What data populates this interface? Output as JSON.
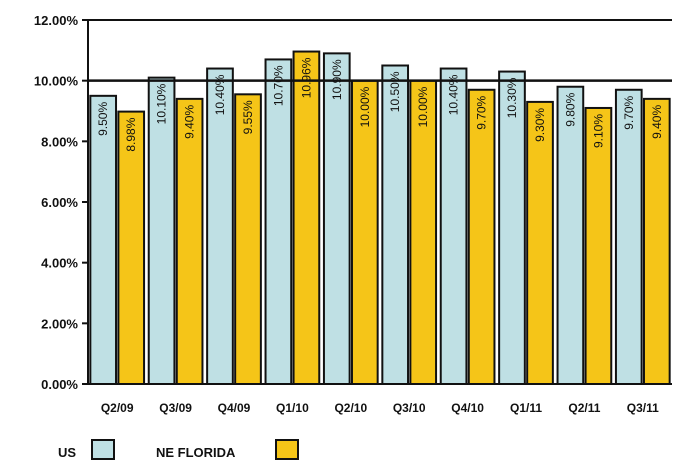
{
  "chart_data": {
    "type": "bar",
    "categories": [
      "Q2/09",
      "Q3/09",
      "Q4/09",
      "Q1/10",
      "Q2/10",
      "Q3/10",
      "Q4/10",
      "Q1/11",
      "Q2/11",
      "Q3/11"
    ],
    "series": [
      {
        "name": "US",
        "color": "#bfe0e4",
        "values": [
          9.5,
          10.1,
          10.4,
          10.7,
          10.9,
          10.5,
          10.4,
          10.3,
          9.8,
          9.7
        ],
        "labels": [
          "9.50%",
          "10.10%",
          "10.40%",
          "10.70%",
          "10.90%",
          "10.50%",
          "10.40%",
          "10.30%",
          "9.80%",
          "9.70%"
        ]
      },
      {
        "name": "NE FLORIDA",
        "color": "#f5c518",
        "values": [
          8.98,
          9.4,
          9.55,
          10.96,
          10.0,
          10.0,
          9.7,
          9.3,
          9.1,
          9.4
        ],
        "labels": [
          "8.98%",
          "9.40%",
          "9.55%",
          "10.96%",
          "10.00%",
          "10.00%",
          "9.70%",
          "9.30%",
          "9.10%",
          "9.40%"
        ]
      }
    ],
    "yticks": [
      "0.00%",
      "2.00%",
      "4.00%",
      "6.00%",
      "8.00%",
      "10.00%",
      "12.00%"
    ],
    "ylim": [
      0,
      12
    ],
    "reference_line": 10,
    "grid": false,
    "legend": "bottom-left"
  }
}
